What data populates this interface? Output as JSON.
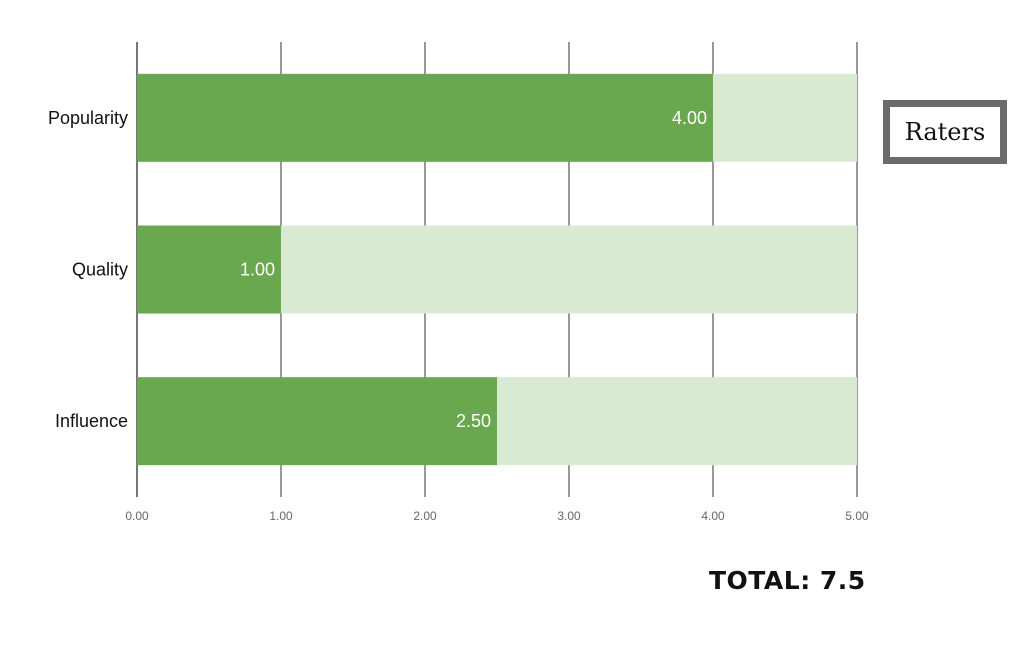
{
  "chart_data": {
    "type": "bar",
    "orientation": "horizontal",
    "stacked": true,
    "categories": [
      "Popularity",
      "Quality",
      "Influence"
    ],
    "series": [
      {
        "values": [
          4.0,
          1.0,
          2.5
        ],
        "color": "#6aa84f"
      },
      {
        "values": [
          1.0,
          4.0,
          2.5
        ],
        "color": "#d9ead3"
      }
    ],
    "data_labels": [
      "4.00",
      "1.00",
      "2.50"
    ],
    "xlim": [
      0,
      5
    ],
    "x_ticks": [
      0,
      1,
      2,
      3,
      4,
      5
    ],
    "x_tick_labels": [
      "0.00",
      "1.00",
      "2.00",
      "3.00",
      "4.00",
      "5.00"
    ],
    "grid": "vertical",
    "title": "",
    "xlabel": "",
    "ylabel": ""
  },
  "legend": {
    "label": "Raters",
    "placement": "right"
  },
  "total_text": "TOTAL: 7.5",
  "colors": {
    "grid": "#555555",
    "tick_text": "#666666",
    "category_text": "#111111",
    "bar_label": "#ffffff"
  }
}
